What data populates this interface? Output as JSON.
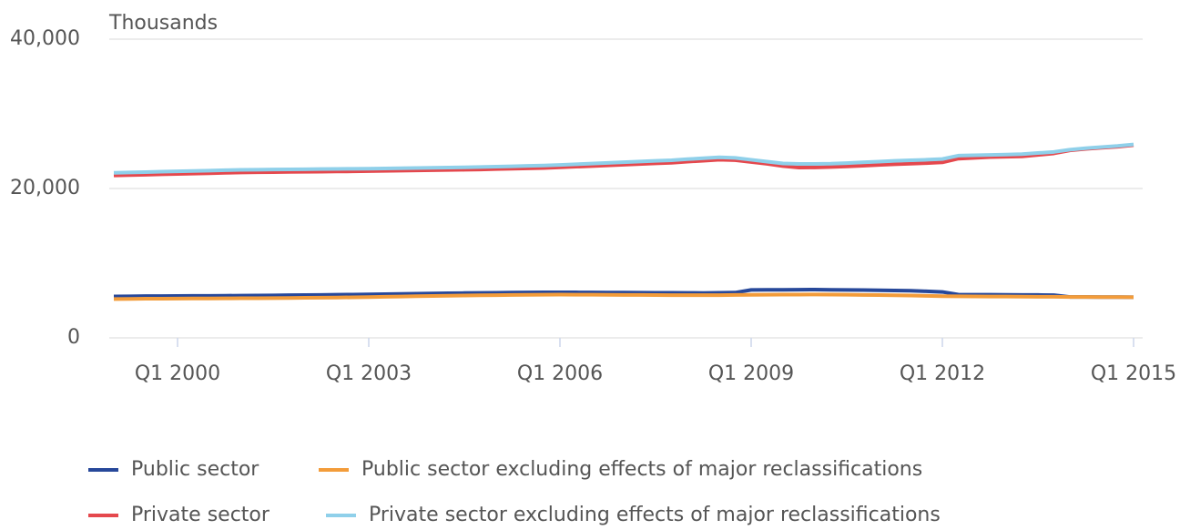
{
  "chart_data": {
    "type": "line",
    "y_label": "Thousands",
    "categories": [
      null,
      null,
      null,
      null,
      "Q1 2000",
      null,
      null,
      null,
      null,
      null,
      null,
      null,
      null,
      null,
      null,
      null,
      "Q1 2003",
      null,
      null,
      null,
      null,
      null,
      null,
      null,
      null,
      null,
      null,
      null,
      "Q1 2006",
      null,
      null,
      null,
      null,
      null,
      null,
      null,
      null,
      null,
      null,
      null,
      "Q1 2009",
      null,
      null,
      null,
      null,
      null,
      null,
      null,
      null,
      null,
      null,
      null,
      "Q1 2012",
      null,
      null,
      null,
      null,
      null,
      null,
      null,
      null,
      null,
      null,
      null,
      "Q1 2015"
    ],
    "series": [
      {
        "name": "Public sector",
        "color": "#27489a",
        "values": [
          5550,
          5570,
          5590,
          5600,
          5610,
          5620,
          5630,
          5640,
          5660,
          5670,
          5690,
          5710,
          5730,
          5750,
          5770,
          5800,
          5820,
          5850,
          5880,
          5910,
          5940,
          5970,
          6000,
          6020,
          6040,
          6060,
          6080,
          6090,
          6100,
          6090,
          6080,
          6070,
          6060,
          6050,
          6040,
          6030,
          6020,
          6010,
          6030,
          6060,
          6420,
          6430,
          6440,
          6450,
          6460,
          6440,
          6420,
          6400,
          6370,
          6340,
          6310,
          6240,
          6150,
          5800,
          5780,
          5770,
          5760,
          5750,
          5740,
          5720,
          5480,
          5470,
          5460,
          5450,
          5440
        ]
      },
      {
        "name": "Public sector excluding effects of major reclassifications",
        "color": "#f39c3a",
        "values": [
          5200,
          5220,
          5240,
          5250,
          5260,
          5270,
          5280,
          5290,
          5300,
          5310,
          5320,
          5340,
          5360,
          5380,
          5400,
          5430,
          5460,
          5500,
          5540,
          5580,
          5610,
          5640,
          5670,
          5700,
          5720,
          5740,
          5760,
          5780,
          5790,
          5780,
          5770,
          5760,
          5750,
          5740,
          5730,
          5720,
          5720,
          5710,
          5720,
          5740,
          5760,
          5770,
          5790,
          5800,
          5810,
          5790,
          5770,
          5750,
          5730,
          5700,
          5670,
          5620,
          5580,
          5560,
          5550,
          5540,
          5530,
          5520,
          5510,
          5500,
          5480,
          5470,
          5460,
          5450,
          5440
        ]
      },
      {
        "name": "Private sector",
        "color": "#e5484d",
        "values": [
          21750,
          21800,
          21850,
          21900,
          21950,
          22000,
          22050,
          22100,
          22150,
          22180,
          22200,
          22220,
          22240,
          22260,
          22280,
          22300,
          22330,
          22360,
          22390,
          22420,
          22450,
          22480,
          22510,
          22550,
          22600,
          22650,
          22700,
          22750,
          22830,
          22920,
          23010,
          23100,
          23190,
          23280,
          23370,
          23450,
          23600,
          23720,
          23850,
          23800,
          23550,
          23300,
          23000,
          22800,
          22820,
          22880,
          22950,
          23050,
          23150,
          23250,
          23330,
          23400,
          23500,
          24000,
          24100,
          24200,
          24250,
          24300,
          24500,
          24700,
          25100,
          25300,
          25450,
          25600,
          25800
        ]
      },
      {
        "name": "Private sector excluding effects of major reclassifications",
        "color": "#8fd0ea",
        "values": [
          22100,
          22150,
          22200,
          22250,
          22300,
          22350,
          22400,
          22450,
          22500,
          22520,
          22540,
          22560,
          22580,
          22600,
          22620,
          22640,
          22660,
          22690,
          22720,
          22750,
          22780,
          22810,
          22840,
          22880,
          22930,
          22980,
          23030,
          23080,
          23160,
          23250,
          23340,
          23430,
          23520,
          23610,
          23700,
          23780,
          23930,
          24050,
          24170,
          24100,
          23850,
          23600,
          23350,
          23300,
          23300,
          23320,
          23400,
          23500,
          23600,
          23700,
          23780,
          23850,
          23950,
          24400,
          24450,
          24500,
          24550,
          24600,
          24750,
          24900,
          25200,
          25400,
          25550,
          25700,
          25900
        ]
      }
    ],
    "ylim": [
      0,
      40000
    ],
    "yticks": [
      0,
      {
        "value": 20000,
        "label": "20,000"
      },
      {
        "value": 40000,
        "label": "40,000"
      }
    ],
    "grid": true,
    "legend": "bottom"
  }
}
